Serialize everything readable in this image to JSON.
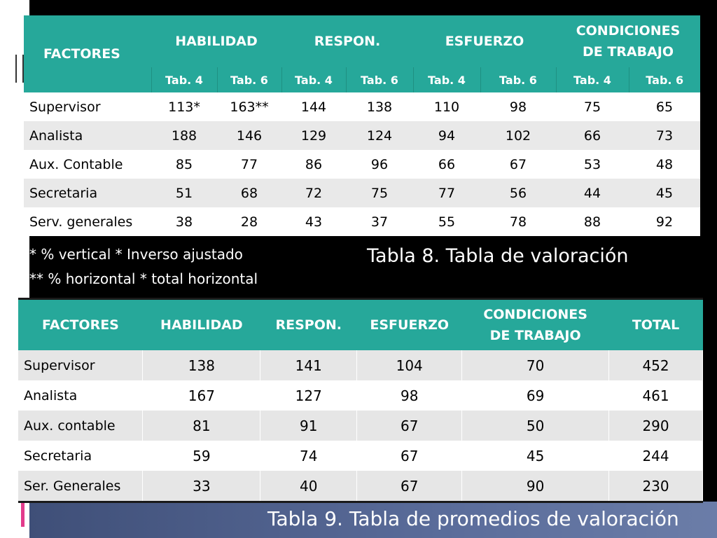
{
  "table8": {
    "headers": {
      "factores": "FACTORES",
      "habilidad": "HABILIDAD",
      "respon": "RESPON.",
      "esfuerzo": "ESFUERZO",
      "condiciones_line1": "CONDICIONES",
      "condiciones_line2": "DE TRABAJO"
    },
    "subheaders": [
      "Tab. 4",
      "Tab. 6",
      "Tab. 4",
      "Tab. 6",
      "Tab. 4",
      "Tab. 6",
      "Tab. 4",
      "Tab. 6"
    ],
    "rows": [
      {
        "name": "Supervisor",
        "values": [
          "113*",
          "163**",
          "144",
          "138",
          "110",
          "98",
          "75",
          "65"
        ]
      },
      {
        "name": "Analista",
        "values": [
          "188",
          "146",
          "129",
          "124",
          "94",
          "102",
          "66",
          "73"
        ]
      },
      {
        "name": "Aux. Contable",
        "values": [
          "85",
          "77",
          "86",
          "96",
          "66",
          "67",
          "53",
          "48"
        ]
      },
      {
        "name": "Secretaria",
        "values": [
          "51",
          "68",
          "72",
          "75",
          "77",
          "56",
          "44",
          "45"
        ]
      },
      {
        "name": "Serv. generales",
        "values": [
          "38",
          "28",
          "43",
          "37",
          "55",
          "78",
          "88",
          "92"
        ]
      }
    ],
    "notes": [
      "* % vertical * Inverso ajustado",
      "** % horizontal *  total horizontal"
    ],
    "caption": "Tabla 8. Tabla de valoración"
  },
  "table9": {
    "headers": {
      "factores": "FACTORES",
      "habilidad": "HABILIDAD",
      "respon": "RESPON.",
      "esfuerzo": "ESFUERZO",
      "condiciones_line1": "CONDICIONES",
      "condiciones_line2": "DE TRABAJO",
      "total": "TOTAL"
    },
    "rows": [
      {
        "name": "Supervisor",
        "values": [
          "138",
          "141",
          "104",
          "70",
          "452"
        ]
      },
      {
        "name": "Analista",
        "values": [
          "167",
          "127",
          "98",
          "69",
          "461"
        ]
      },
      {
        "name": "Aux. contable",
        "values": [
          "81",
          "91",
          "67",
          "50",
          "290"
        ]
      },
      {
        "name": "Secretaria",
        "values": [
          "59",
          "74",
          "67",
          "45",
          "244"
        ]
      },
      {
        "name": "Ser. Generales",
        "values": [
          "33",
          "40",
          "67",
          "90",
          "230"
        ]
      }
    ],
    "caption": "Tabla 9. Tabla de promedios de valoración"
  },
  "colors": {
    "header_teal": "#26a89a",
    "background": "#000000",
    "accent_pink": "#e23b8c",
    "bottom_band": "#4f6090"
  }
}
